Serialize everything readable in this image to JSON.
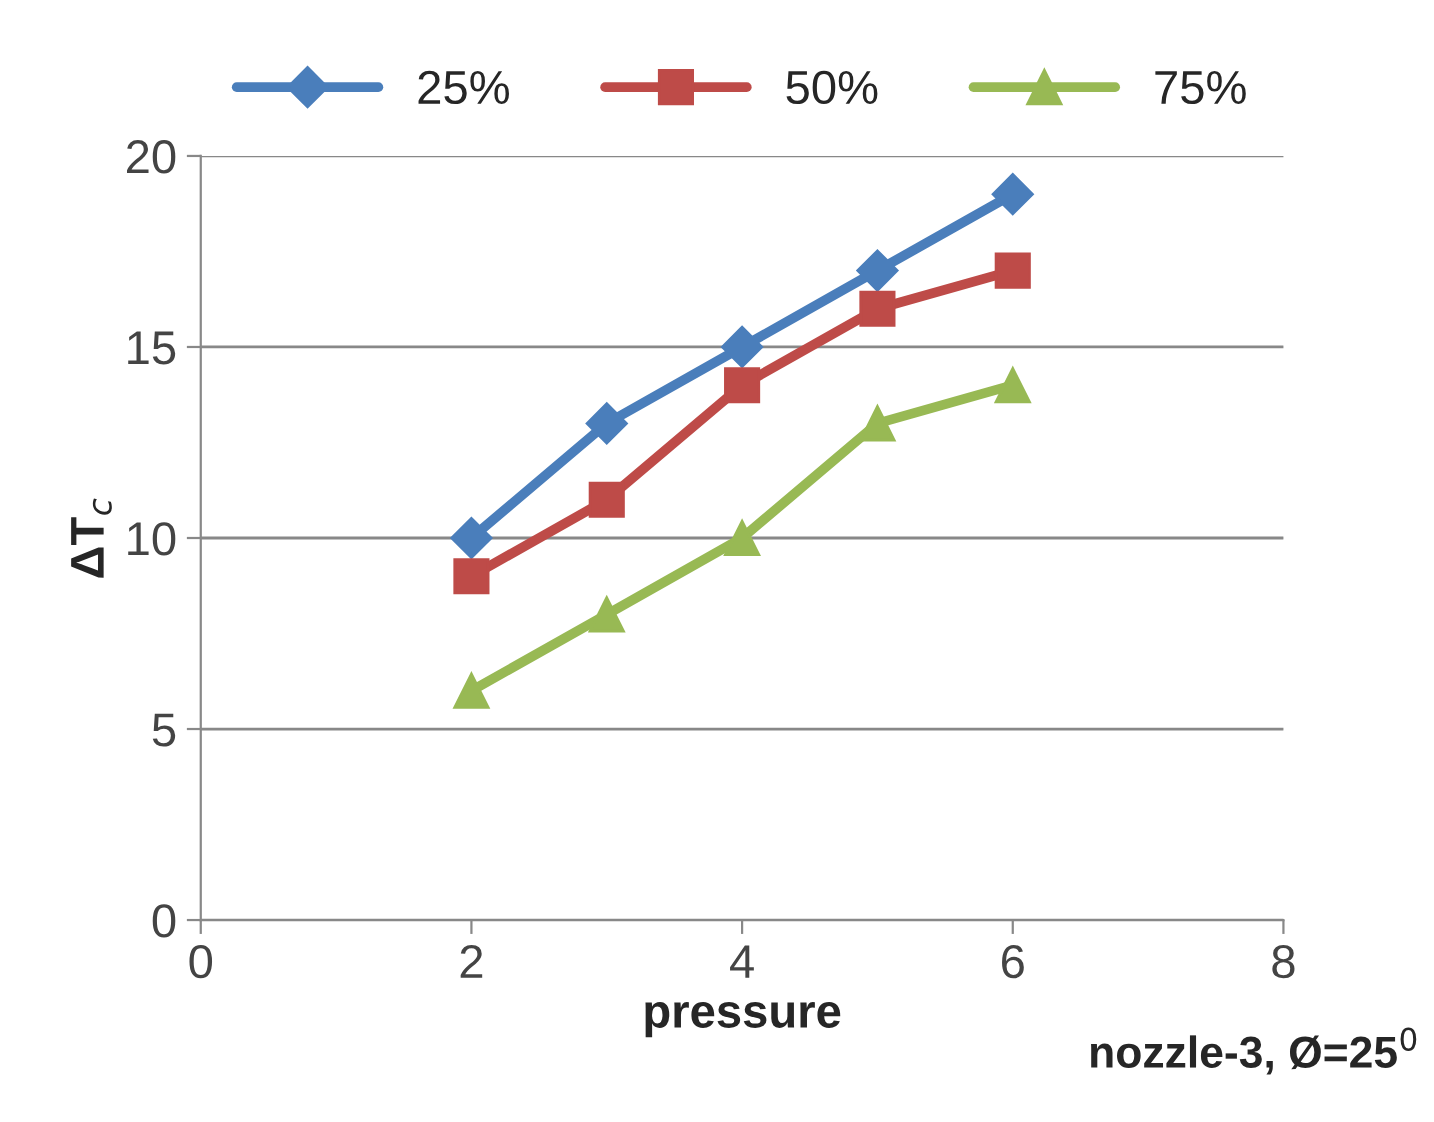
{
  "chart_data": {
    "type": "line",
    "xlabel": "pressure",
    "ylabel": "ΔT$_{c}$",
    "annotations": [
      "nozzle-3, Ø=25$^{0}$"
    ],
    "x": [
      2,
      3,
      4,
      5,
      6
    ],
    "series": [
      {
        "name": "25%",
        "color": "#4a7ebb",
        "marker": "diamond",
        "values": [
          10,
          13,
          15,
          17,
          19
        ]
      },
      {
        "name": "50%",
        "color": "#be4b48",
        "marker": "square",
        "values": [
          9,
          11,
          14,
          16,
          17
        ]
      },
      {
        "name": "75%",
        "color": "#98b954",
        "marker": "triangle",
        "values": [
          6,
          8,
          10,
          13,
          14
        ]
      }
    ],
    "xlim": [
      0,
      8
    ],
    "xticks": [
      0,
      2,
      4,
      6,
      8
    ],
    "ylim": [
      0,
      20
    ],
    "yticks": [
      0,
      5,
      10,
      15,
      20
    ],
    "grid": "y",
    "legend": "top"
  }
}
